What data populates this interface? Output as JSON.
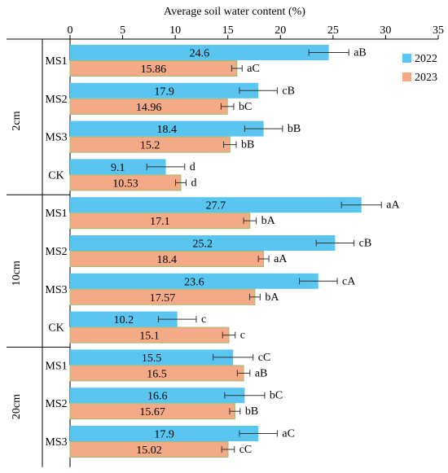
{
  "chart_data": {
    "type": "bar",
    "orientation": "horizontal",
    "title": "Average soil water content (%)",
    "xlim": [
      0,
      35
    ],
    "x_ticks": [
      "0",
      "5",
      "10",
      "15",
      "20",
      "25",
      "30",
      "35"
    ],
    "axis_position": "top",
    "grid": false,
    "legend_position": "top-right",
    "series": [
      {
        "name": "2022",
        "color": "#5BC5F2"
      },
      {
        "name": "2023",
        "color": "#F4AA86"
      }
    ],
    "groups": [
      {
        "label": "2cm",
        "items": [
          {
            "label": "MS1",
            "bars": [
              {
                "value": 24.6,
                "label": "24.6",
                "err": 1.9,
                "sig": "aB"
              },
              {
                "value": 15.86,
                "label": "15.86",
                "err": 0.5,
                "sig": "aC"
              }
            ]
          },
          {
            "label": "MS2",
            "bars": [
              {
                "value": 17.9,
                "label": "17.9",
                "err": 1.8,
                "sig": "cB"
              },
              {
                "value": 14.96,
                "label": "14.96",
                "err": 0.6,
                "sig": "bC"
              }
            ]
          },
          {
            "label": "MS3",
            "bars": [
              {
                "value": 18.4,
                "label": "18.4",
                "err": 1.8,
                "sig": "bB"
              },
              {
                "value": 15.2,
                "label": "15.2",
                "err": 0.6,
                "sig": "bB"
              }
            ]
          },
          {
            "label": "CK",
            "bars": [
              {
                "value": 9.1,
                "label": "9.1",
                "err": 1.8,
                "sig": "d"
              },
              {
                "value": 10.53,
                "label": "10.53",
                "err": 0.5,
                "sig": "d"
              }
            ]
          }
        ]
      },
      {
        "label": "10cm",
        "items": [
          {
            "label": "MS1",
            "bars": [
              {
                "value": 27.7,
                "label": "27.7",
                "err": 1.9,
                "sig": "aA"
              },
              {
                "value": 17.1,
                "label": "17.1",
                "err": 0.6,
                "sig": "bA"
              }
            ]
          },
          {
            "label": "MS2",
            "bars": [
              {
                "value": 25.2,
                "label": "25.2",
                "err": 1.8,
                "sig": "cB"
              },
              {
                "value": 18.4,
                "label": "18.4",
                "err": 0.5,
                "sig": "aA"
              }
            ]
          },
          {
            "label": "MS3",
            "bars": [
              {
                "value": 23.6,
                "label": "23.6",
                "err": 1.8,
                "sig": "cA"
              },
              {
                "value": 17.57,
                "label": "17.57",
                "err": 0.5,
                "sig": "bA"
              }
            ]
          },
          {
            "label": "CK",
            "bars": [
              {
                "value": 10.2,
                "label": "10.2",
                "err": 1.8,
                "sig": "c"
              },
              {
                "value": 15.1,
                "label": "15.1",
                "err": 0.6,
                "sig": "c"
              }
            ]
          }
        ]
      },
      {
        "label": "20cm",
        "items": [
          {
            "label": "MS1",
            "bars": [
              {
                "value": 15.5,
                "label": "15.5",
                "err": 1.9,
                "sig": "cC"
              },
              {
                "value": 16.5,
                "label": "16.5",
                "err": 0.6,
                "sig": "aB"
              }
            ]
          },
          {
            "label": "MS2",
            "bars": [
              {
                "value": 16.6,
                "label": "16.6",
                "err": 1.9,
                "sig": "bC"
              },
              {
                "value": 15.67,
                "label": "15.67",
                "err": 0.5,
                "sig": "bB"
              }
            ]
          },
          {
            "label": "MS3",
            "bars": [
              {
                "value": 17.9,
                "label": "17.9",
                "err": 1.8,
                "sig": "aC"
              },
              {
                "value": 15.02,
                "label": "15.02",
                "err": 0.6,
                "sig": "cC"
              }
            ]
          }
        ]
      }
    ]
  }
}
